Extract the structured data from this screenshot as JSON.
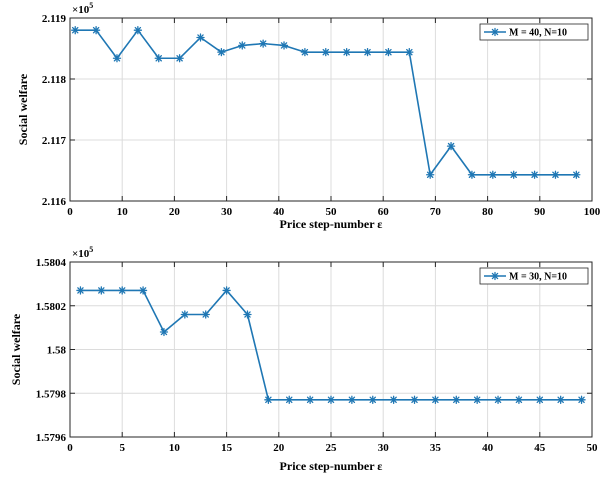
{
  "chart_data": [
    {
      "type": "line",
      "xlabel": "Price step-number ε",
      "ylabel": "Social welfare",
      "exponent_label": "×10",
      "exponent_power": "5",
      "xlim": [
        0,
        100
      ],
      "ylim": [
        2.116,
        2.119
      ],
      "xticks": [
        0,
        10,
        20,
        30,
        40,
        50,
        60,
        70,
        80,
        90,
        100
      ],
      "yticks": [
        2.116,
        2.117,
        2.118,
        2.119
      ],
      "ytick_labels": [
        "2.116",
        "2.117",
        "2.118",
        "2.119"
      ],
      "grid": true,
      "legend_position": "top-right",
      "color": "#1f77b4",
      "series": [
        {
          "name": "M = 40, N=10",
          "x": [
            1,
            5,
            9,
            13,
            17,
            21,
            25,
            29,
            33,
            37,
            41,
            45,
            49,
            53,
            57,
            61,
            65,
            69,
            73,
            77,
            81,
            85,
            89,
            93,
            97
          ],
          "y": [
            2.1188,
            2.1188,
            2.11834,
            2.1188,
            2.11834,
            2.11834,
            2.11868,
            2.11844,
            2.11855,
            2.11858,
            2.11855,
            2.11844,
            2.11844,
            2.11844,
            2.11844,
            2.11844,
            2.11844,
            2.11643,
            2.1169,
            2.11643,
            2.11643,
            2.11643,
            2.11643,
            2.11643,
            2.11643
          ]
        }
      ]
    },
    {
      "type": "line",
      "xlabel": "Price step-number ε",
      "ylabel": "Social welfare",
      "exponent_label": "×10",
      "exponent_power": "5",
      "xlim": [
        0,
        50
      ],
      "ylim": [
        1.5796,
        1.5804
      ],
      "xticks": [
        0,
        5,
        10,
        15,
        20,
        25,
        30,
        35,
        40,
        45,
        50
      ],
      "yticks": [
        1.5796,
        1.5798,
        1.58,
        1.5802,
        1.5804
      ],
      "ytick_labels": [
        "1.5796",
        "1.5798",
        "1.58",
        "1.5802",
        "1.5804"
      ],
      "grid": true,
      "legend_position": "top-right",
      "color": "#1f77b4",
      "series": [
        {
          "name": "M = 30, N=10",
          "x": [
            1,
            3,
            5,
            7,
            9,
            11,
            13,
            15,
            17,
            19,
            21,
            23,
            25,
            27,
            29,
            31,
            33,
            35,
            37,
            39,
            41,
            43,
            45,
            47,
            49
          ],
          "y": [
            1.58027,
            1.58027,
            1.58027,
            1.58027,
            1.58008,
            1.58016,
            1.58016,
            1.58027,
            1.58016,
            1.57977,
            1.57977,
            1.57977,
            1.57977,
            1.57977,
            1.57977,
            1.57977,
            1.57977,
            1.57977,
            1.57977,
            1.57977,
            1.57977,
            1.57977,
            1.57977,
            1.57977,
            1.57977
          ]
        }
      ]
    }
  ]
}
